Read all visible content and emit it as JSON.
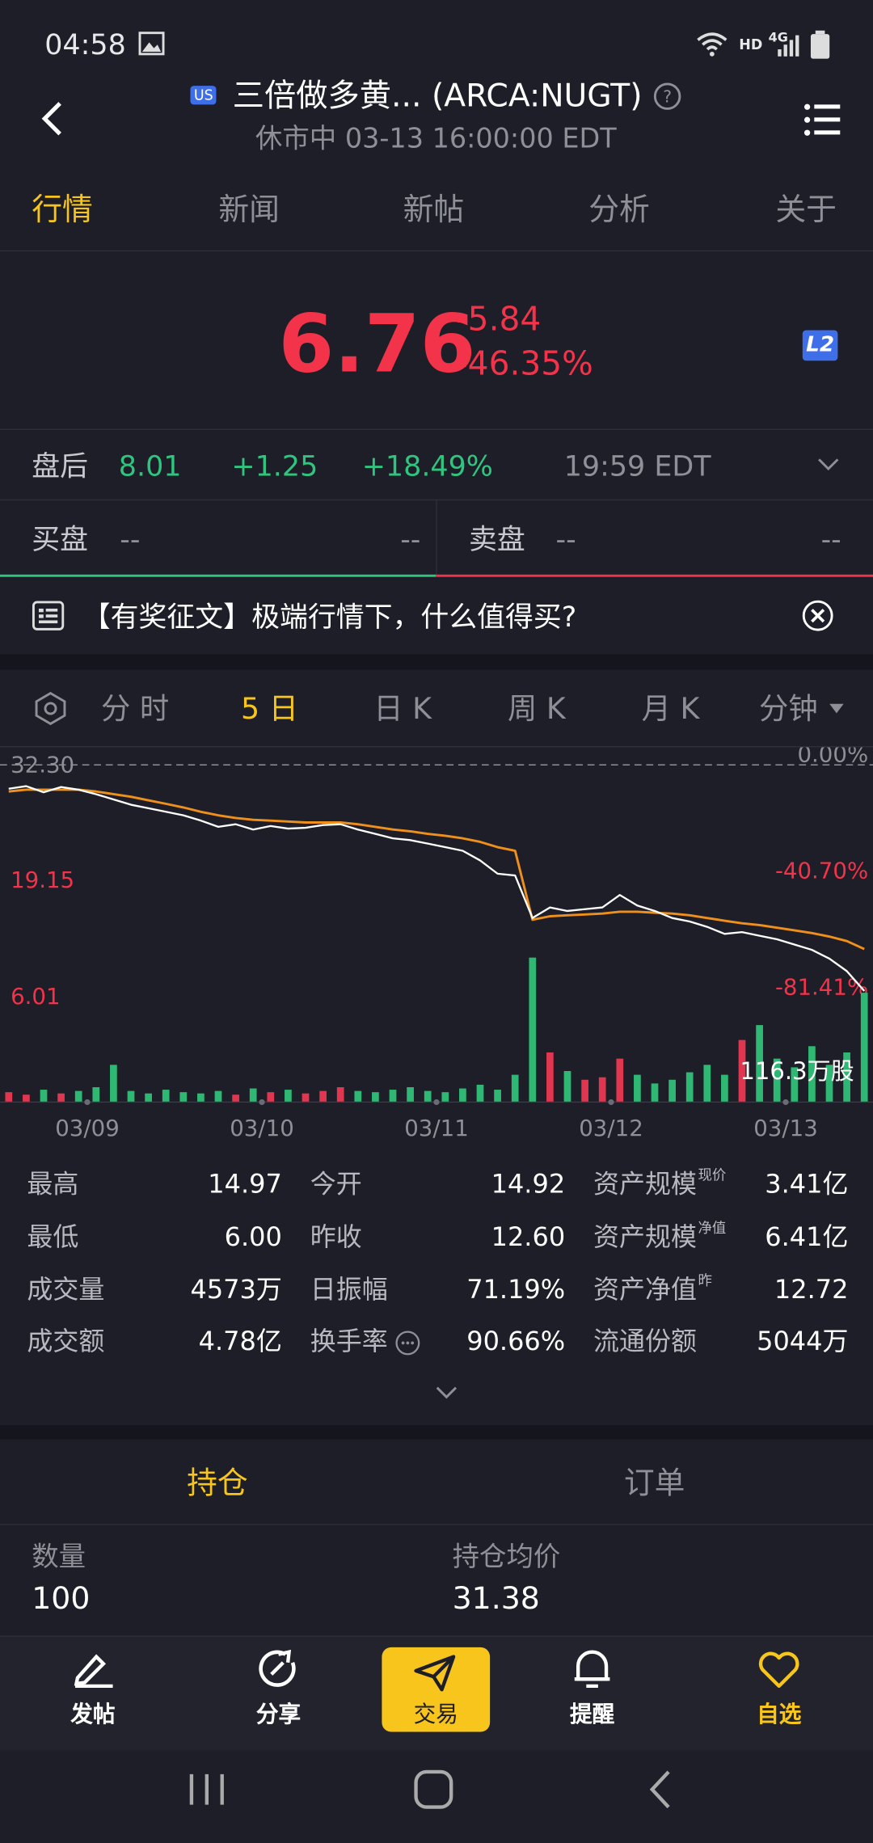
{
  "status_bar": {
    "time": "04:58",
    "network": "HD",
    "signal": "4G"
  },
  "header": {
    "badge": "US",
    "title": "三倍做多黄... (ARCA:NUGT)",
    "subtitle": "休市中 03-13 16:00:00 EDT"
  },
  "tabs": [
    "行情",
    "新闻",
    "新帖",
    "分析",
    "关于"
  ],
  "quote": {
    "price": "6.76",
    "change": "-5.84",
    "change_pct": "-46.35%",
    "level_badge": "L2"
  },
  "after_hours": {
    "label": "盘后",
    "price": "8.01",
    "change": "+1.25",
    "change_pct": "+18.49%",
    "time": "19:59 EDT"
  },
  "order_book": {
    "bid": {
      "label": "买盘",
      "price": "--",
      "size": "--"
    },
    "ask": {
      "label": "卖盘",
      "price": "--",
      "size": "--"
    }
  },
  "news": "【有奖征文】极端行情下，什么值得买?",
  "chart_tabs": [
    "分 时",
    "5 日",
    "日 K",
    "周 K",
    "月 K",
    "分钟"
  ],
  "chart": {
    "ylim": [
      6.01,
      32.3
    ],
    "yticks": [
      {
        "value": 32.3,
        "label": "32.30"
      },
      19.15,
      6.01
    ],
    "pct_labels": [
      "0.00%",
      "-40.70%",
      "-81.41%"
    ],
    "days": [
      "03/09",
      "03/10",
      "03/11",
      "03/12",
      "03/13"
    ],
    "price": [
      29.6,
      29.9,
      29.2,
      29.8,
      29.5,
      29.0,
      28.4,
      27.8,
      27.4,
      27.0,
      26.6,
      26.0,
      25.3,
      25.6,
      25.0,
      25.4,
      25.1,
      25.2,
      25.5,
      25.6,
      25.0,
      24.5,
      24.0,
      23.8,
      23.4,
      23.0,
      22.6,
      21.5,
      20.0,
      19.8,
      15.0,
      16.2,
      15.8,
      16.0,
      16.2,
      17.6,
      16.4,
      15.8,
      15.0,
      14.6,
      14.0,
      13.2,
      13.4,
      13.0,
      12.6,
      12.0,
      11.4,
      10.4,
      9.0,
      6.76
    ],
    "average": [
      29.3,
      29.5,
      29.5,
      29.5,
      29.5,
      29.3,
      29.0,
      28.7,
      28.3,
      27.9,
      27.5,
      27.0,
      26.6,
      26.3,
      26.1,
      26.0,
      25.9,
      25.8,
      25.8,
      25.8,
      25.6,
      25.3,
      25.0,
      24.8,
      24.5,
      24.3,
      24.0,
      23.6,
      23.0,
      22.6,
      14.8,
      15.2,
      15.3,
      15.4,
      15.5,
      15.7,
      15.7,
      15.6,
      15.5,
      15.3,
      15.0,
      14.7,
      14.4,
      14.2,
      13.9,
      13.6,
      13.3,
      12.9,
      12.4,
      11.5
    ],
    "volume": [
      8,
      6,
      10,
      7,
      9,
      12,
      30,
      9,
      7,
      10,
      8,
      7,
      9,
      6,
      11,
      8,
      10,
      7,
      9,
      12,
      9,
      8,
      10,
      12,
      9,
      8,
      11,
      14,
      10,
      22,
      116.3,
      40,
      25,
      18,
      20,
      35,
      22,
      15,
      18,
      24,
      30,
      22,
      50,
      62,
      35,
      28,
      45,
      30,
      40,
      88
    ],
    "volume_lim": [
      0,
      116.3
    ],
    "volume_label": "116.3万股"
  },
  "stats": [
    [
      {
        "label": "最高",
        "value": "14.97"
      },
      {
        "label": "今开",
        "value": "14.92"
      },
      {
        "label": "资产规模",
        "sup": "现价",
        "value": "3.41亿"
      }
    ],
    [
      {
        "label": "最低",
        "value": "6.00"
      },
      {
        "label": "昨收",
        "value": "12.60"
      },
      {
        "label": "资产规模",
        "sup": "净值",
        "value": "6.41亿"
      }
    ],
    [
      {
        "label": "成交量",
        "value": "4573万"
      },
      {
        "label": "日振幅",
        "value": "71.19%"
      },
      {
        "label": "资产净值",
        "sup": "昨",
        "value": "12.72"
      }
    ],
    [
      {
        "label": "成交额",
        "value": "4.78亿"
      },
      {
        "label": "换手率",
        "value": "90.66%"
      },
      {
        "label": "流通份额",
        "value": "5044万"
      }
    ]
  ],
  "position_tabs": [
    "持仓",
    "订单"
  ],
  "position": [
    {
      "label": "数量",
      "value": "100"
    },
    {
      "label": "持仓均价",
      "value": "31.38"
    }
  ],
  "bottom_nav": [
    "发帖",
    "分享",
    "交易",
    "提醒",
    "自选"
  ]
}
